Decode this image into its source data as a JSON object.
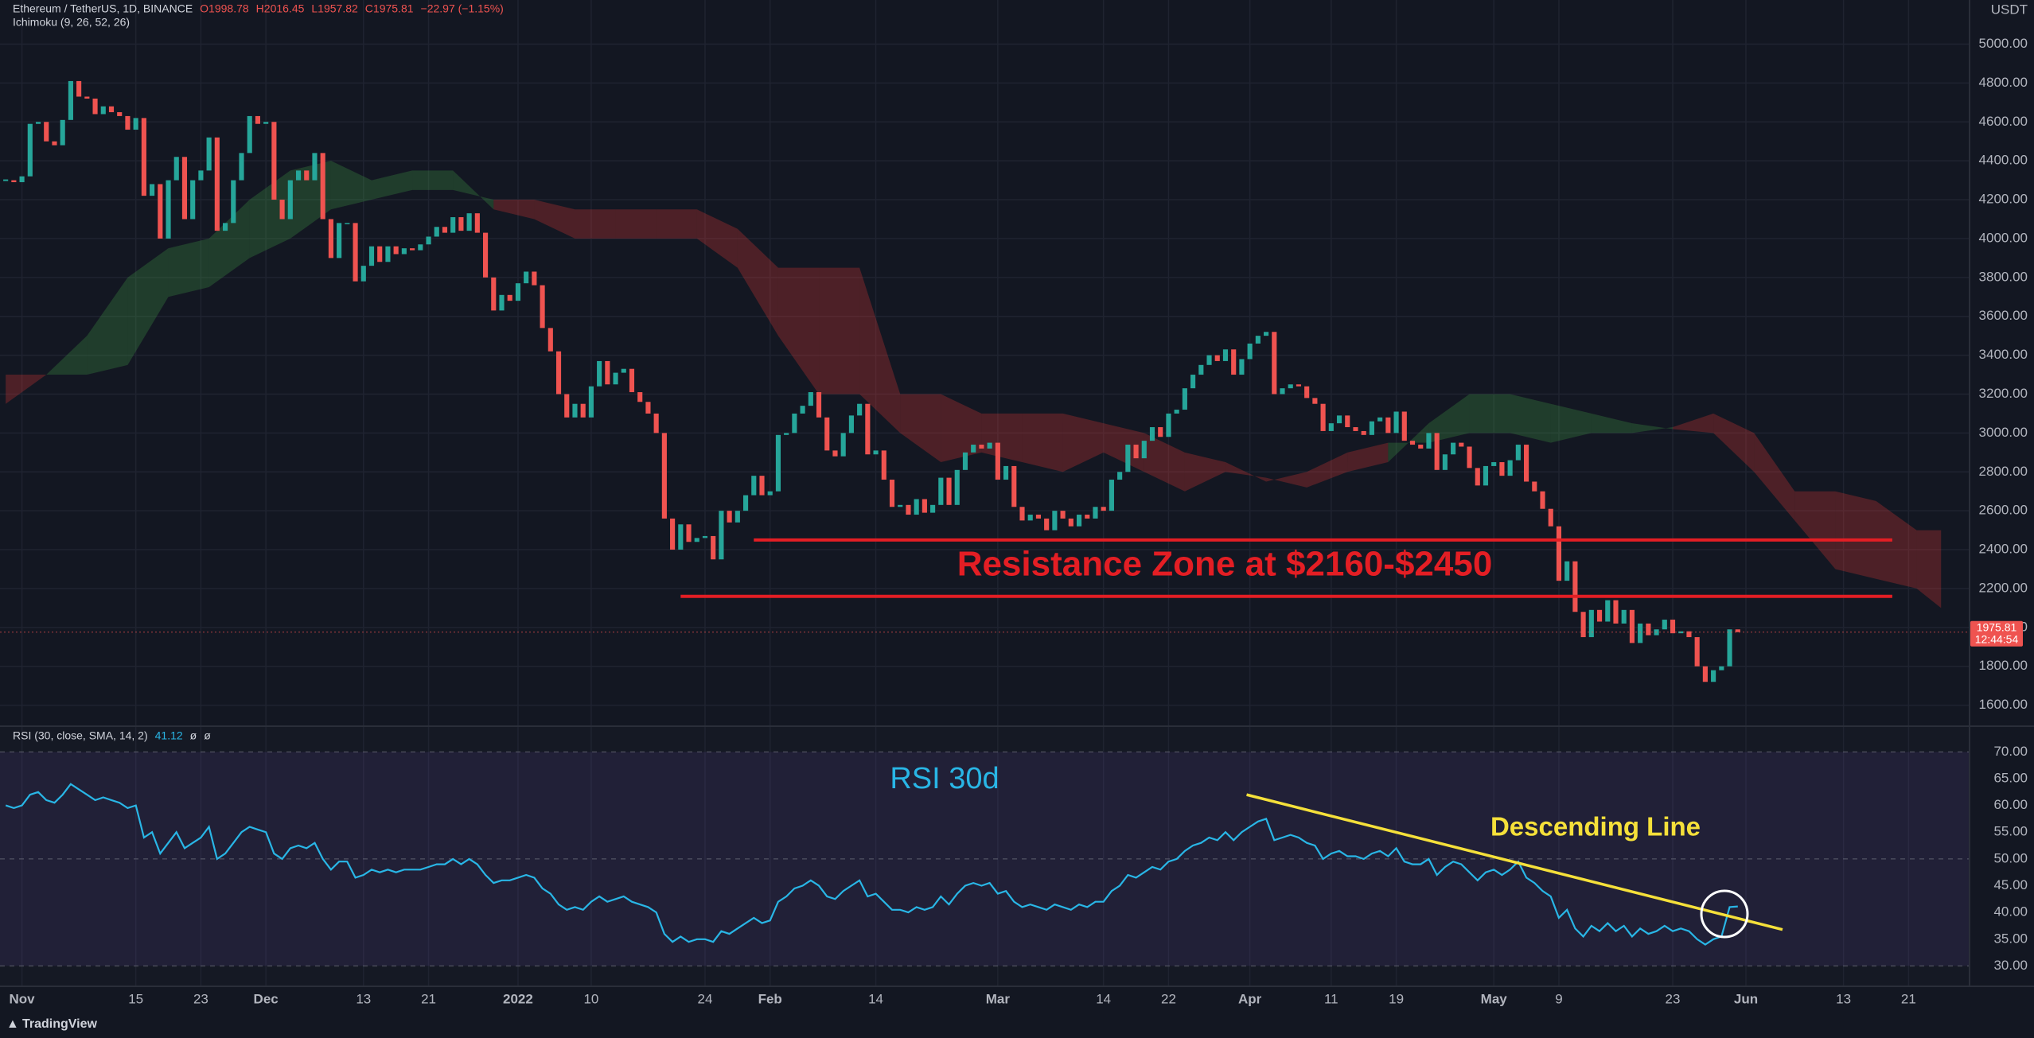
{
  "chart_data": {
    "type": "candlestick",
    "title": "Ethereum / TetherUS, 1D, BINANCE",
    "ohlc": [
      "O1998.78",
      "H2016.45",
      "L1957.82",
      "C1975.81",
      "−22.97 (−1.15%)"
    ],
    "indicator": "Ichimoku (9, 26, 52, 26)",
    "currency": "USDT",
    "countdown": "12:44:54",
    "brand": "TradingView",
    "colors": {
      "up": "#26a69a",
      "down": "#ef5350"
    },
    "xlim": [
      -0.7,
      241.5
    ],
    "xticks": [
      {
        "value": 2,
        "label": "Nov"
      },
      {
        "value": 16,
        "label": "15"
      },
      {
        "value": 24,
        "label": "23"
      },
      {
        "value": 32,
        "label": "Dec"
      },
      {
        "value": 44,
        "label": "13"
      },
      {
        "value": 52,
        "label": "21"
      },
      {
        "value": 63,
        "label": "2022"
      },
      {
        "value": 72,
        "label": "10"
      },
      {
        "value": 86,
        "label": "24"
      },
      {
        "value": 94,
        "label": "Feb"
      },
      {
        "value": 107,
        "label": "14"
      },
      {
        "value": 122,
        "label": "Mar"
      },
      {
        "value": 135,
        "label": "14"
      },
      {
        "value": 143,
        "label": "22"
      },
      {
        "value": 153,
        "label": "Apr"
      },
      {
        "value": 163,
        "label": "11"
      },
      {
        "value": 171,
        "label": "19"
      },
      {
        "value": 183,
        "label": "May"
      },
      {
        "value": 191,
        "label": "9"
      },
      {
        "value": 205,
        "label": "23"
      },
      {
        "value": 214,
        "label": "Jun"
      },
      {
        "value": 226,
        "label": "13"
      },
      {
        "value": 234,
        "label": "21"
      }
    ],
    "ylim": [
      1492,
      5227
    ],
    "yticks": [
      {
        "value": 1600,
        "label": "1600.00"
      },
      {
        "value": 1800,
        "label": "1800.00"
      },
      {
        "value": 2000,
        "label": "2000.00"
      },
      {
        "value": 2200,
        "label": "2200.00"
      },
      {
        "value": 2400,
        "label": "2400.00"
      },
      {
        "value": 2600,
        "label": "2600.00"
      },
      {
        "value": 2800,
        "label": "2800.00"
      },
      {
        "value": 3000,
        "label": "3000.00"
      },
      {
        "value": 3200,
        "label": "3200.00"
      },
      {
        "value": 3400,
        "label": "3400.00"
      },
      {
        "value": 3600,
        "label": "3600.00"
      },
      {
        "value": 3800,
        "label": "3800.00"
      },
      {
        "value": 4000,
        "label": "4000.00"
      },
      {
        "value": 4200,
        "label": "4200.00"
      },
      {
        "value": 4400,
        "label": "4400.00"
      },
      {
        "value": 4600,
        "label": "4600.00"
      },
      {
        "value": 4800,
        "label": "4800.00"
      },
      {
        "value": 5000,
        "label": "5000.00"
      }
    ],
    "closes": [
      4300,
      4290,
      4320,
      4590,
      4600,
      4500,
      4480,
      4610,
      4810,
      4730,
      4720,
      4640,
      4680,
      4650,
      4630,
      4560,
      4620,
      4220,
      4280,
      4000,
      4300,
      4420,
      4100,
      4300,
      4350,
      4520,
      4040,
      4080,
      4300,
      4440,
      4630,
      4590,
      4600,
      4200,
      4100,
      4300,
      4350,
      4300,
      4440,
      4100,
      3900,
      4080,
      4080,
      3780,
      3860,
      3960,
      3880,
      3960,
      3920,
      3950,
      3940,
      3970,
      4010,
      4060,
      4030,
      4110,
      4040,
      4130,
      4030,
      3800,
      3630,
      3710,
      3680,
      3770,
      3830,
      3760,
      3540,
      3420,
      3200,
      3080,
      3150,
      3080,
      3240,
      3370,
      3250,
      3310,
      3330,
      3210,
      3160,
      3100,
      3000,
      2560,
      2400,
      2530,
      2440,
      2460,
      2470,
      2350,
      2600,
      2540,
      2600,
      2680,
      2780,
      2680,
      2700,
      2990,
      3000,
      3100,
      3140,
      3210,
      3080,
      2910,
      2880,
      3000,
      3090,
      3150,
      2890,
      2910,
      2760,
      2620,
      2630,
      2580,
      2660,
      2590,
      2630,
      2770,
      2630,
      2810,
      2900,
      2940,
      2920,
      2950,
      2760,
      2830,
      2620,
      2550,
      2580,
      2560,
      2500,
      2600,
      2560,
      2520,
      2580,
      2560,
      2620,
      2600,
      2760,
      2800,
      2940,
      2870,
      2960,
      3030,
      2980,
      3100,
      3120,
      3230,
      3300,
      3350,
      3400,
      3370,
      3430,
      3300,
      3380,
      3460,
      3500,
      3520,
      3200,
      3230,
      3250,
      3240,
      3180,
      3150,
      3010,
      3050,
      3090,
      3030,
      3010,
      2990,
      3060,
      3080,
      3000,
      3110,
      2960,
      2940,
      2920,
      3000,
      2810,
      2890,
      2950,
      2930,
      2820,
      2730,
      2830,
      2850,
      2780,
      2860,
      2940,
      2750,
      2700,
      2610,
      2520,
      2240,
      2340,
      2080,
      1950,
      2090,
      2030,
      2140,
      2020,
      2090,
      1920,
      2020,
      1960,
      1990,
      2040,
      1970,
      1980,
      1950,
      1800,
      1720,
      1780,
      1800,
      1990,
      1975.81
    ],
    "cloud": {
      "colors": {
        "up": "rgba(67,160,71,0.28)",
        "down": "rgba(229,57,53,0.28)"
      },
      "x": [
        0,
        5,
        10,
        15,
        20,
        25,
        30,
        35,
        40,
        45,
        50,
        55,
        60,
        65,
        70,
        75,
        80,
        85,
        90,
        95,
        100,
        105,
        110,
        115,
        120,
        125,
        130,
        135,
        140,
        145,
        150,
        155,
        160,
        165,
        170,
        175,
        180,
        185,
        190,
        195,
        200,
        205,
        210,
        215,
        220,
        225,
        230,
        235,
        238
      ],
      "span_a": [
        3150,
        3300,
        3500,
        3800,
        3950,
        4000,
        4200,
        4350,
        4400,
        4300,
        4350,
        4350,
        4150,
        4100,
        4000,
        4000,
        4000,
        4000,
        3850,
        3500,
        3200,
        3200,
        3000,
        2850,
        2900,
        2850,
        2800,
        2900,
        2800,
        2700,
        2800,
        2770,
        2720,
        2800,
        2850,
        3050,
        3200,
        3200,
        3150,
        3100,
        3050,
        3020,
        3000,
        2800,
        2550,
        2300,
        2250,
        2200,
        2100
      ],
      "span_b": [
        3300,
        3300,
        3300,
        3350,
        3700,
        3750,
        3900,
        4000,
        4150,
        4200,
        4250,
        4250,
        4200,
        4200,
        4150,
        4150,
        4150,
        4150,
        4050,
        3850,
        3850,
        3850,
        3200,
        3200,
        3100,
        3100,
        3100,
        3050,
        3000,
        2900,
        2850,
        2750,
        2800,
        2900,
        2950,
        2950,
        3000,
        3000,
        2950,
        3000,
        3000,
        3030,
        3100,
        3000,
        2700,
        2700,
        2650,
        2500,
        2500
      ]
    },
    "resistance_lines": [
      {
        "y": 2450,
        "x": [
          92,
          232
        ]
      },
      {
        "y": 2160,
        "x": [
          83,
          232
        ]
      }
    ],
    "resistance_color": "#e31e24",
    "annotations": {
      "resistance": "Resistance Zone at $2160-$2450",
      "rsi": "RSI 30d",
      "trend": "Descending Line"
    },
    "rsi": {
      "name": "RSI (30, close, SMA, 14, 2)",
      "signals": [
        "ø",
        "ø"
      ],
      "color": "#29b6e6",
      "ylim": [
        26.2,
        74.8
      ],
      "yticks": [
        {
          "value": 30,
          "label": "30.00"
        },
        {
          "value": 35,
          "label": "35.00"
        },
        {
          "value": 40,
          "label": "40.00"
        },
        {
          "value": 45,
          "label": "45.00"
        },
        {
          "value": 50,
          "label": "50.00"
        },
        {
          "value": 55,
          "label": "55.00"
        },
        {
          "value": 60,
          "label": "60.00"
        },
        {
          "value": 65,
          "label": "65.00"
        },
        {
          "value": 70,
          "label": "70.00"
        }
      ],
      "band": [
        30,
        70
      ],
      "midline": 50,
      "trend_line": {
        "x": [
          152.6,
          218.5
        ],
        "y": [
          62,
          36.8
        ],
        "color": "#f5e03a"
      },
      "values": [
        60,
        59.5,
        60,
        62,
        62.5,
        61,
        60.5,
        62,
        64,
        63,
        62,
        61,
        61.5,
        61,
        60.5,
        59.5,
        60,
        54,
        55,
        51,
        53,
        55,
        52,
        53,
        54,
        56,
        50,
        51,
        53,
        55,
        56,
        55.5,
        55,
        51,
        50,
        52,
        52.5,
        52,
        53,
        50,
        48,
        49.5,
        49.5,
        46.5,
        47,
        48,
        47.5,
        48,
        47.5,
        48,
        48,
        48,
        48.5,
        49,
        49,
        50,
        49,
        50,
        49,
        47,
        45.5,
        46,
        46,
        46.5,
        47,
        46.5,
        44.5,
        43.5,
        41.5,
        40.5,
        41,
        40.5,
        42,
        43,
        42,
        42.5,
        43,
        42,
        41.5,
        41,
        40,
        36,
        34.5,
        35.5,
        34.5,
        35,
        35,
        34.5,
        36.5,
        36,
        37,
        38,
        39,
        38,
        38.5,
        42,
        43,
        44.5,
        45,
        46,
        45,
        43,
        42.5,
        44,
        45,
        46,
        43,
        43.5,
        42,
        40.5,
        40.5,
        40,
        41,
        40.5,
        41,
        43,
        41.5,
        43.5,
        45,
        45.5,
        45,
        45.5,
        43.5,
        44,
        42,
        41,
        41.5,
        41,
        40.5,
        41.5,
        41,
        40.5,
        41.5,
        41,
        42,
        42,
        44,
        45,
        47,
        46.5,
        47.5,
        48.5,
        48,
        49.5,
        50,
        51.5,
        52.5,
        53,
        54,
        53.5,
        55,
        53.5,
        55,
        56,
        57,
        57.5,
        53.5,
        54,
        54.5,
        54,
        53,
        52.5,
        50,
        51,
        51.5,
        50.5,
        50.5,
        50,
        51,
        51.5,
        50.5,
        52,
        49.5,
        49,
        49,
        50,
        47,
        48.5,
        49.5,
        49,
        47.5,
        46,
        47.5,
        48,
        47,
        48,
        49.5,
        46.5,
        45.5,
        44,
        43,
        39,
        40.5,
        37,
        35.5,
        37.5,
        36.5,
        38,
        36.5,
        37.5,
        35.5,
        37,
        36,
        36.5,
        37.5,
        36.5,
        37,
        36.5,
        35,
        34,
        35,
        35.5,
        41,
        41.12
      ]
    }
  }
}
